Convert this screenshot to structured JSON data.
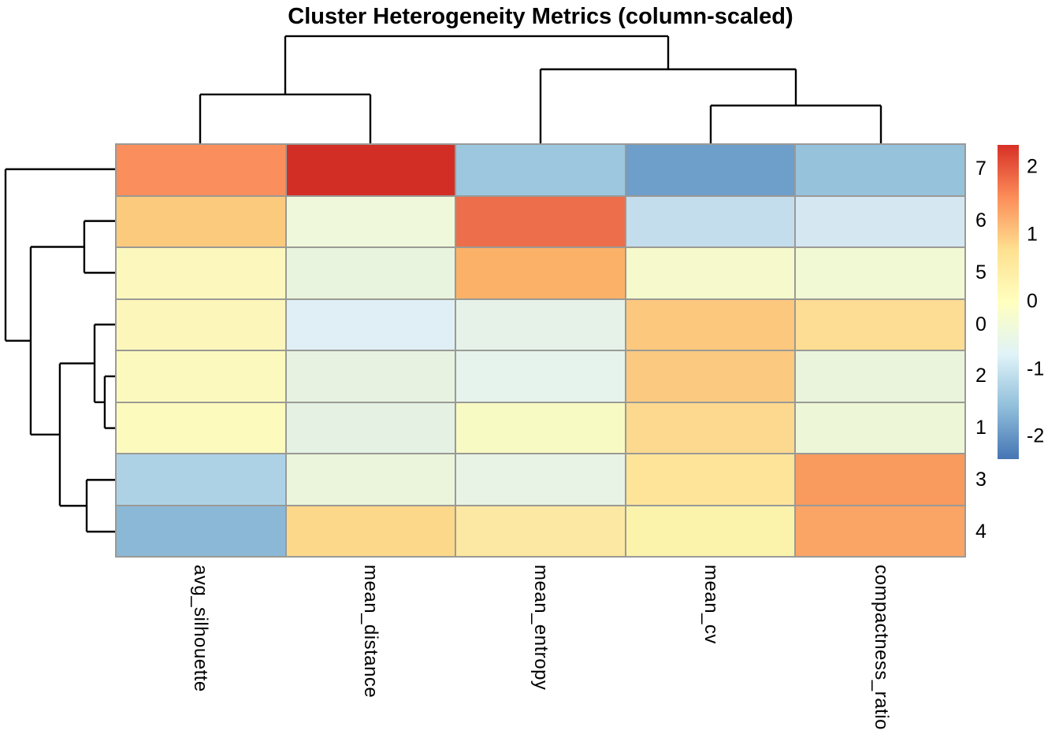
{
  "title": "Cluster Heterogeneity Metrics (column-scaled)",
  "chart_data": {
    "type": "heatmap",
    "title": "Cluster Heterogeneity Metrics (column-scaled)",
    "columns": [
      "avg_silhouette",
      "mean_distance",
      "mean_entropy",
      "mean_cv",
      "compactness_ratio"
    ],
    "rows": [
      "7",
      "6",
      "5",
      "0",
      "2",
      "1",
      "3",
      "4"
    ],
    "values_note": "column z-scores, estimated from color scale",
    "values": [
      [
        1.5,
        2.2,
        -1.45,
        -1.95,
        -1.5
      ],
      [
        1.05,
        -0.35,
        1.85,
        -1.1,
        -0.95
      ],
      [
        0.05,
        -0.4,
        1.25,
        -0.15,
        -0.25
      ],
      [
        0.1,
        -0.85,
        -0.55,
        1.05,
        0.8
      ],
      [
        0.05,
        -0.45,
        -0.6,
        1.0,
        -0.4
      ],
      [
        0.0,
        -0.55,
        -0.1,
        0.85,
        -0.3
      ],
      [
        -1.25,
        -0.35,
        -0.5,
        0.65,
        1.4
      ],
      [
        -1.65,
        0.85,
        0.6,
        0.25,
        1.3
      ]
    ],
    "cell_colors": [
      [
        "#FA8E5C",
        "#D22E26",
        "#9CC7DF",
        "#6E9ECA",
        "#96C2DC"
      ],
      [
        "#FCCA7D",
        "#EFF8DA",
        "#EC6E4B",
        "#C3DDED",
        "#D5E7F1"
      ],
      [
        "#FCF8BD",
        "#E9F4DE",
        "#FBB167",
        "#F5F9CB",
        "#F1F8D4"
      ],
      [
        "#FCF6BB",
        "#DFEFF5",
        "#E6F2E8",
        "#FCC87D",
        "#FDDC93"
      ],
      [
        "#FCF9BE",
        "#E7F3E0",
        "#E6F2EC",
        "#FCC980",
        "#EAF4DC"
      ],
      [
        "#FDFABE",
        "#E4F1E3",
        "#F8FAC3",
        "#FDD88F",
        "#EDF6D7"
      ],
      [
        "#ADD2E6",
        "#EBF5DB",
        "#E8F3E5",
        "#FDE499",
        "#F99A5F"
      ],
      [
        "#8CB8D8",
        "#FCD88A",
        "#FCE8A2",
        "#FBF3AC",
        "#FAA466"
      ]
    ],
    "grid_line_color": "#9a9a95",
    "legend": {
      "max": 2.33,
      "min": -2.34,
      "ticks": [
        {
          "label": "2",
          "value": 2
        },
        {
          "label": "1",
          "value": 1
        },
        {
          "label": "0",
          "value": 0
        },
        {
          "label": "-1",
          "value": -1
        },
        {
          "label": "-2",
          "value": -2
        }
      ],
      "gradient_top_to_bottom": [
        "#D73027",
        "#FC8D59",
        "#FEE090",
        "#FFFFBF",
        "#E0F3F8",
        "#91BFDB",
        "#4575B4"
      ]
    },
    "col_dendrogram": {
      "leaf_order": [
        "avg_silhouette",
        "mean_distance",
        "mean_entropy",
        "mean_cv",
        "compactness_ratio"
      ],
      "merges": [
        [
          "l0",
          "l1",
          0.437
        ],
        [
          "l3",
          "l4",
          0.338
        ],
        [
          "l2",
          "m1",
          0.662
        ],
        [
          "m0",
          "m2",
          0.958
        ]
      ]
    },
    "row_dendrogram": {
      "leaf_order": [
        "7",
        "6",
        "5",
        "0",
        "2",
        "1",
        "3",
        "4"
      ],
      "merges": [
        [
          "l1",
          "l2",
          0.281
        ],
        [
          "l4",
          "l5",
          0.094
        ],
        [
          "l3",
          "m1",
          0.187
        ],
        [
          "l6",
          "l7",
          0.259
        ],
        [
          "m2",
          "m3",
          0.504
        ],
        [
          "m0",
          "m4",
          0.77
        ],
        [
          "l0",
          "m5",
          1.0
        ]
      ]
    },
    "line_color": "#000000"
  }
}
